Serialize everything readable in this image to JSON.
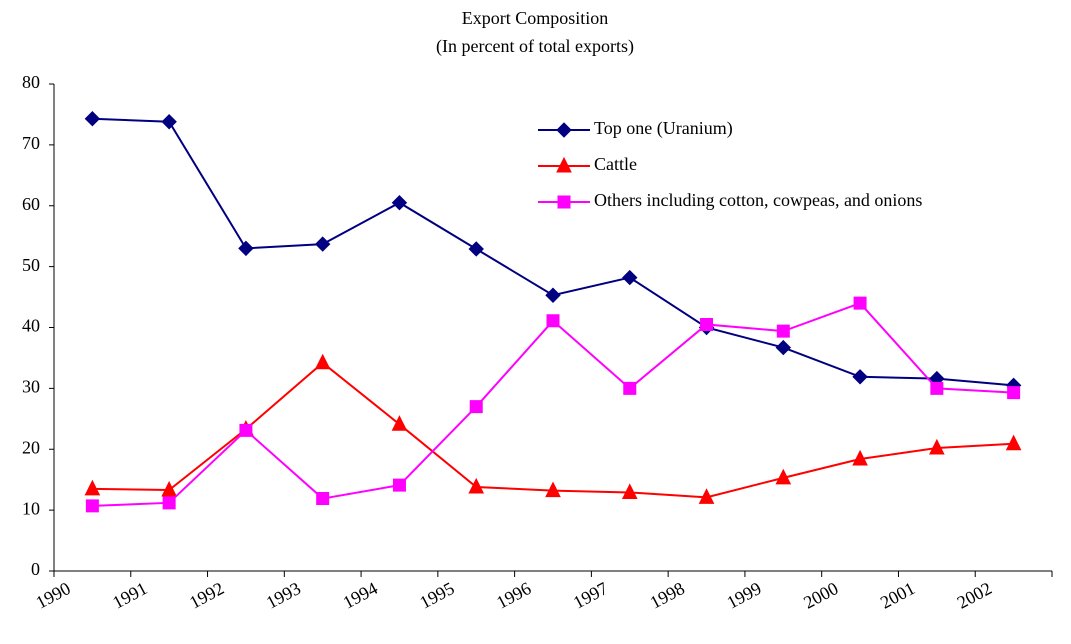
{
  "chart_data": {
    "type": "line",
    "title": "Export Composition",
    "subtitle": "(In percent of total exports)",
    "categories": [
      "1990",
      "1991",
      "1992",
      "1993",
      "1994",
      "1995",
      "1996",
      "1997",
      "1998",
      "1999",
      "2000",
      "2001",
      "2002"
    ],
    "series": [
      {
        "name": "Top one (Uranium)",
        "color": "#000080",
        "marker": "diamond",
        "values": [
          74.3,
          73.8,
          53.0,
          53.7,
          60.5,
          52.9,
          45.3,
          48.2,
          40.0,
          36.7,
          31.9,
          31.6,
          30.5
        ]
      },
      {
        "name": "Cattle",
        "color": "#ff0000",
        "marker": "triangle",
        "values": [
          13.5,
          13.3,
          23.3,
          34.2,
          24.1,
          13.8,
          13.2,
          12.9,
          12.1,
          15.3,
          18.4,
          20.2,
          20.9
        ]
      },
      {
        "name": "Others including cotton, cowpeas, and onions",
        "color": "#ff00ff",
        "marker": "square",
        "values": [
          10.7,
          11.2,
          23.1,
          11.9,
          14.1,
          27.0,
          41.1,
          30.0,
          40.5,
          39.4,
          44.0,
          30.0,
          29.3
        ]
      }
    ],
    "ylim": [
      0,
      80
    ],
    "yticks": [
      0,
      10,
      20,
      30,
      40,
      50,
      60,
      70,
      80
    ],
    "grid": false,
    "legend": "upper right"
  }
}
